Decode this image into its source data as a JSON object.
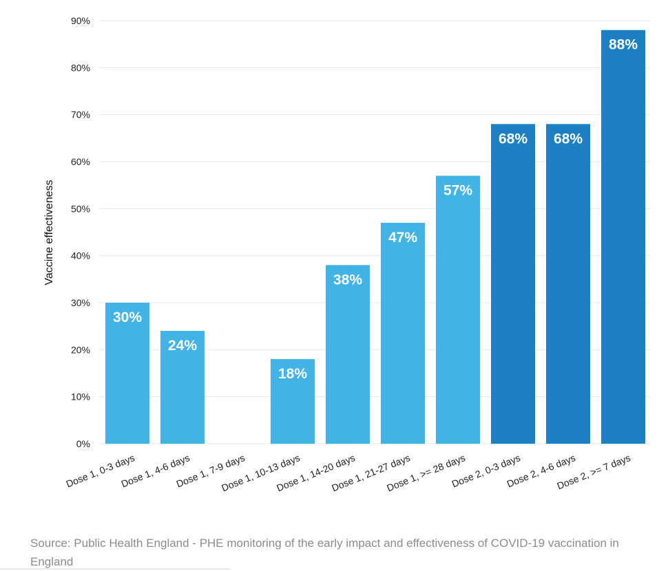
{
  "chart_data": {
    "type": "bar",
    "title": "",
    "xlabel": "",
    "ylabel": "Vaccine effectiveness",
    "ylim": [
      0,
      90
    ],
    "yticks": [
      0,
      10,
      20,
      30,
      40,
      50,
      60,
      70,
      80,
      90
    ],
    "ytick_labels": [
      "0%",
      "10%",
      "20%",
      "30%",
      "40%",
      "50%",
      "60%",
      "70%",
      "80%",
      "90%"
    ],
    "grid": true,
    "legend": "none",
    "categories": [
      "Dose 1, 0-3 days",
      "Dose 1, 4-6 days",
      "Dose 1, 7-9 days",
      "Dose 1, 10-13 days",
      "Dose 1, 14-20 days",
      "Dose 1, 21-27 days",
      "Dose 1, >= 28 days",
      "Dose 2, 0-3 days",
      "Dose 2, 4-6 days",
      "Dose 2, >= 7 days"
    ],
    "values": [
      30,
      24,
      null,
      18,
      38,
      47,
      57,
      68,
      68,
      88
    ],
    "data_labels": [
      "30%",
      "24%",
      "",
      "18%",
      "38%",
      "47%",
      "57%",
      "68%",
      "68%",
      "88%"
    ],
    "colors": {
      "dose1": "#41b3e4",
      "dose2": "#1d80c3"
    }
  },
  "source": "Source: Public Health England - PHE monitoring of the early impact and effectiveness of COVID-19 vaccination in England"
}
